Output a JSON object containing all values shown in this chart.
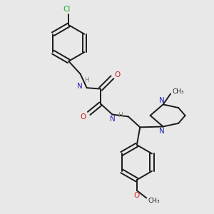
{
  "background_color": "#e8e8e8",
  "bond_color": "#1a1a1a",
  "N_color": "#2222bb",
  "O_color": "#cc2020",
  "Cl_color": "#22aa22",
  "H_color": "#888888",
  "figsize": [
    3.0,
    3.0
  ],
  "dpi": 100,
  "xlim": [
    0,
    10
  ],
  "ylim": [
    0,
    10
  ]
}
